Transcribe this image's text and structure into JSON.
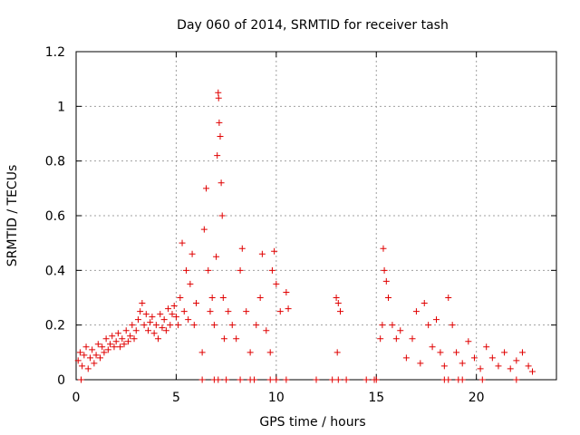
{
  "chart_data": {
    "type": "scatter",
    "title": "Day 060 of 2014, SRMTID for receiver tash",
    "xlabel": "GPS time / hours",
    "ylabel": "SRMTID / TECUs",
    "xlim": [
      0,
      24
    ],
    "ylim": [
      0,
      1.2
    ],
    "xticks": [
      0,
      5,
      10,
      15,
      20
    ],
    "xtick_labels": [
      "0",
      "5",
      "10",
      "15",
      "20"
    ],
    "yticks": [
      0,
      0.2,
      0.4,
      0.6,
      0.8,
      1.0,
      1.2
    ],
    "ytick_labels": [
      "0",
      "0.2",
      "0.4",
      "0.6",
      "0.8",
      "1",
      "1.2"
    ],
    "grid": true,
    "marker": "+",
    "color": "#e00000",
    "series": [
      {
        "name": "SRMTID",
        "points": [
          [
            0.1,
            0.07
          ],
          [
            0.2,
            0.1
          ],
          [
            0.3,
            0.05
          ],
          [
            0.4,
            0.09
          ],
          [
            0.5,
            0.12
          ],
          [
            0.6,
            0.04
          ],
          [
            0.7,
            0.08
          ],
          [
            0.8,
            0.11
          ],
          [
            0.9,
            0.06
          ],
          [
            1.0,
            0.09
          ],
          [
            1.1,
            0.13
          ],
          [
            1.2,
            0.08
          ],
          [
            1.3,
            0.12
          ],
          [
            1.4,
            0.1
          ],
          [
            1.5,
            0.15
          ],
          [
            1.6,
            0.11
          ],
          [
            1.7,
            0.13
          ],
          [
            1.8,
            0.16
          ],
          [
            1.9,
            0.12
          ],
          [
            2.0,
            0.14
          ],
          [
            2.1,
            0.17
          ],
          [
            2.2,
            0.12
          ],
          [
            2.3,
            0.15
          ],
          [
            2.4,
            0.13
          ],
          [
            2.5,
            0.18
          ],
          [
            2.6,
            0.14
          ],
          [
            2.7,
            0.16
          ],
          [
            2.8,
            0.2
          ],
          [
            2.9,
            0.15
          ],
          [
            3.0,
            0.18
          ],
          [
            3.1,
            0.22
          ],
          [
            3.2,
            0.25
          ],
          [
            3.3,
            0.28
          ],
          [
            3.4,
            0.2
          ],
          [
            3.5,
            0.24
          ],
          [
            3.6,
            0.18
          ],
          [
            3.7,
            0.21
          ],
          [
            3.8,
            0.23
          ],
          [
            3.9,
            0.17
          ],
          [
            4.0,
            0.2
          ],
          [
            4.1,
            0.15
          ],
          [
            4.2,
            0.24
          ],
          [
            4.3,
            0.19
          ],
          [
            4.4,
            0.22
          ],
          [
            4.5,
            0.18
          ],
          [
            4.6,
            0.26
          ],
          [
            4.7,
            0.2
          ],
          [
            4.8,
            0.24
          ],
          [
            4.9,
            0.27
          ],
          [
            5.0,
            0.23
          ],
          [
            5.1,
            0.2
          ],
          [
            5.2,
            0.3
          ],
          [
            5.3,
            0.5
          ],
          [
            5.4,
            0.25
          ],
          [
            5.5,
            0.4
          ],
          [
            5.6,
            0.22
          ],
          [
            5.7,
            0.35
          ],
          [
            5.8,
            0.46
          ],
          [
            5.9,
            0.2
          ],
          [
            6.0,
            0.28
          ],
          [
            6.3,
            0.1
          ],
          [
            6.4,
            0.55
          ],
          [
            6.5,
            0.7
          ],
          [
            6.6,
            0.4
          ],
          [
            6.7,
            0.25
          ],
          [
            6.8,
            0.3
          ],
          [
            6.9,
            0.2
          ],
          [
            7.0,
            0.45
          ],
          [
            7.05,
            0.82
          ],
          [
            7.1,
            1.05
          ],
          [
            7.12,
            1.03
          ],
          [
            7.15,
            0.94
          ],
          [
            7.2,
            0.89
          ],
          [
            7.25,
            0.72
          ],
          [
            7.3,
            0.6
          ],
          [
            7.35,
            0.3
          ],
          [
            7.4,
            0.15
          ],
          [
            7.6,
            0.25
          ],
          [
            7.8,
            0.2
          ],
          [
            8.0,
            0.15
          ],
          [
            8.2,
            0.4
          ],
          [
            8.3,
            0.48
          ],
          [
            8.5,
            0.25
          ],
          [
            8.7,
            0.1
          ],
          [
            9.0,
            0.2
          ],
          [
            9.2,
            0.3
          ],
          [
            9.3,
            0.46
          ],
          [
            9.5,
            0.18
          ],
          [
            9.7,
            0.1
          ],
          [
            9.8,
            0.4
          ],
          [
            9.9,
            0.47
          ],
          [
            10.0,
            0.35
          ],
          [
            10.2,
            0.25
          ],
          [
            10.5,
            0.32
          ],
          [
            10.6,
            0.26
          ],
          [
            13.0,
            0.3
          ],
          [
            13.05,
            0.1
          ],
          [
            13.1,
            0.28
          ],
          [
            13.2,
            0.25
          ],
          [
            15.2,
            0.15
          ],
          [
            15.3,
            0.2
          ],
          [
            15.35,
            0.48
          ],
          [
            15.4,
            0.4
          ],
          [
            15.5,
            0.36
          ],
          [
            15.6,
            0.3
          ],
          [
            15.8,
            0.2
          ],
          [
            16.0,
            0.15
          ],
          [
            16.2,
            0.18
          ],
          [
            16.5,
            0.08
          ],
          [
            16.8,
            0.15
          ],
          [
            17.0,
            0.25
          ],
          [
            17.2,
            0.06
          ],
          [
            17.4,
            0.28
          ],
          [
            17.6,
            0.2
          ],
          [
            17.8,
            0.12
          ],
          [
            18.0,
            0.22
          ],
          [
            18.2,
            0.1
          ],
          [
            18.4,
            0.05
          ],
          [
            18.6,
            0.3
          ],
          [
            18.8,
            0.2
          ],
          [
            19.0,
            0.1
          ],
          [
            19.3,
            0.06
          ],
          [
            19.6,
            0.14
          ],
          [
            19.9,
            0.08
          ],
          [
            20.2,
            0.04
          ],
          [
            20.5,
            0.12
          ],
          [
            20.8,
            0.08
          ],
          [
            21.1,
            0.05
          ],
          [
            21.4,
            0.1
          ],
          [
            21.7,
            0.04
          ],
          [
            22.0,
            0.07
          ],
          [
            22.3,
            0.1
          ],
          [
            22.6,
            0.05
          ],
          [
            22.8,
            0.03
          ],
          [
            0.25,
            0.0
          ],
          [
            6.3,
            0.0
          ],
          [
            6.9,
            0.0
          ],
          [
            7.1,
            0.0
          ],
          [
            7.5,
            0.0
          ],
          [
            8.2,
            0.0
          ],
          [
            8.7,
            0.0
          ],
          [
            8.9,
            0.0
          ],
          [
            9.7,
            0.0
          ],
          [
            10.0,
            0.0
          ],
          [
            10.5,
            0.0
          ],
          [
            12.0,
            0.0
          ],
          [
            12.8,
            0.0
          ],
          [
            13.1,
            0.0
          ],
          [
            13.5,
            0.0
          ],
          [
            14.5,
            0.0
          ],
          [
            14.9,
            0.0
          ],
          [
            15.0,
            0.0
          ],
          [
            18.4,
            0.0
          ],
          [
            18.6,
            0.0
          ],
          [
            19.1,
            0.0
          ],
          [
            19.3,
            0.0
          ],
          [
            20.3,
            0.0
          ],
          [
            22.0,
            0.0
          ]
        ]
      }
    ]
  }
}
